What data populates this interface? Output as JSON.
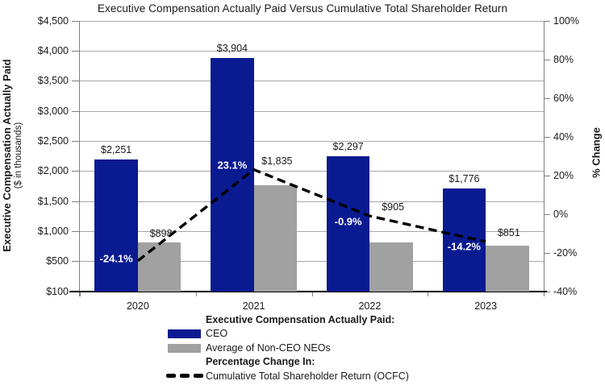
{
  "title": "Executive Compensation Actually Paid Versus Cumulative Total Shareholder Return",
  "left_axis": {
    "title": "Executive Compensation Actually Paid",
    "subtitle": "($ in thousands)",
    "ticks": [
      "$4,500",
      "$4,000",
      "$3,500",
      "$3,000",
      "$2,500",
      "$2,000",
      "$1,500",
      "$1,000",
      "$500",
      "$100"
    ]
  },
  "right_axis": {
    "title": "% Change",
    "ticks": [
      "100%",
      "80%",
      "60%",
      "40%",
      "20%",
      "0%",
      "-20%",
      "-40%"
    ]
  },
  "chart_data": {
    "type": "bar+line",
    "categories": [
      "2020",
      "2021",
      "2022",
      "2023"
    ],
    "series": [
      {
        "name": "CEO",
        "type": "bar",
        "axis": "money",
        "values": [
          2251,
          3904,
          2297,
          1776
        ],
        "labels": [
          "$2,251",
          "$3,904",
          "$2,297",
          "$1,776"
        ]
      },
      {
        "name": "Average of Non-CEO NEOs",
        "type": "bar",
        "axis": "money",
        "values": [
          898,
          1835,
          905,
          851
        ],
        "labels": [
          "$898",
          "$1,835",
          "$905",
          "$851"
        ]
      },
      {
        "name": "Cumulative Total Shareholder Return (OCFC)",
        "type": "line",
        "axis": "percent",
        "dashed": true,
        "values": [
          -24.1,
          23.1,
          -0.9,
          -14.2
        ],
        "labels": [
          "-24.1%",
          "23.1%",
          "-0.9%",
          "-14.2%"
        ]
      }
    ],
    "money_axis": {
      "min": 100,
      "max": 4500,
      "tick_values": [
        4500,
        4000,
        3500,
        3000,
        2500,
        2000,
        1500,
        1000,
        500,
        100
      ]
    },
    "percent_axis": {
      "min": -40,
      "max": 100,
      "tick_values": [
        100,
        80,
        60,
        40,
        20,
        0,
        -20,
        -40
      ]
    },
    "grid": true,
    "legend_position": "bottom"
  },
  "legend": {
    "group1_header": "Executive Compensation Actually Paid:",
    "ceo_label": "CEO",
    "neo_label": "Average of Non-CEO NEOs",
    "group2_header": "Percentage Change In:",
    "line_label": "Cumulative Total Shareholder Return (OCFC)"
  },
  "colors": {
    "ceo_bar": "#0a1a91",
    "neo_bar": "#a1a1a1",
    "line": "#000000",
    "gridline": "#a8a8a8",
    "axis_line": "#7f7f7f",
    "baseline": "#000000",
    "text": "#1a1a1a"
  }
}
